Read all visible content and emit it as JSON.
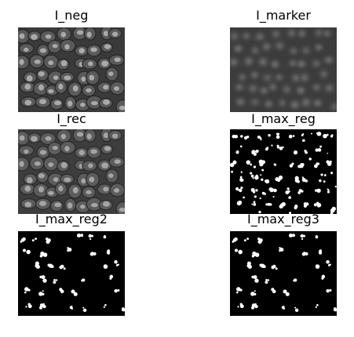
{
  "figure": {
    "panels": [
      {
        "id": "p1",
        "title": "I_neg",
        "kind": "grayscale-cells",
        "style": "neg"
      },
      {
        "id": "p2",
        "title": "I_marker",
        "kind": "grayscale-blur",
        "style": "marker"
      },
      {
        "id": "p3",
        "title": "I_rec",
        "kind": "grayscale-cells",
        "style": "rec"
      },
      {
        "id": "p4",
        "title": "I_max_reg",
        "kind": "binary-mask",
        "style": "dense"
      },
      {
        "id": "p5",
        "title": "I_max_reg2",
        "kind": "binary-mask",
        "style": "sparse"
      },
      {
        "id": "p6",
        "title": "I_max_reg3",
        "kind": "binary-mask",
        "style": "sparse"
      }
    ]
  }
}
